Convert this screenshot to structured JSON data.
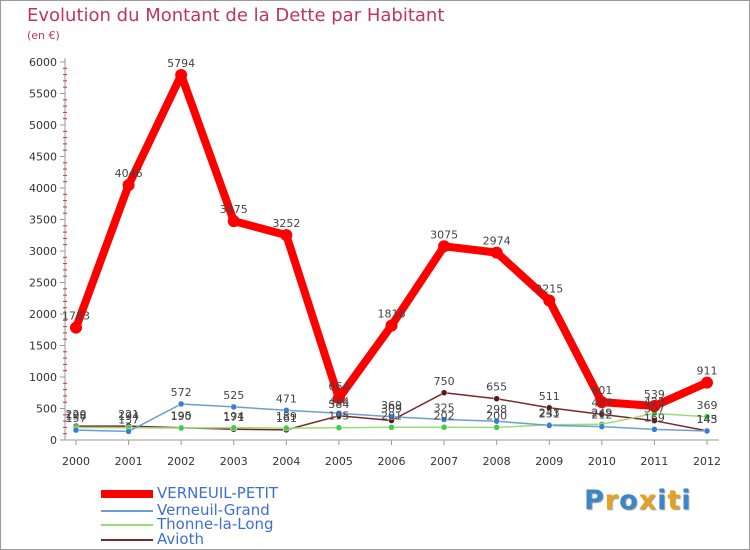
{
  "header": {
    "title": "Evolution du Montant de la Dette par Habitant",
    "subtitle": "(en €)"
  },
  "logo": {
    "text": "Proxiti",
    "letters": [
      "P",
      "r",
      "o",
      "x",
      "i",
      "t",
      "i"
    ],
    "colors": [
      "#3a86c8",
      "#e8a020",
      "#3a86c8",
      "#e8a020",
      "#3a86c8",
      "#e8a020",
      "#3a86c8"
    ]
  },
  "chart_data": {
    "type": "line",
    "title": "Evolution du Montant de la Dette par Habitant",
    "subtitle": "(en €)",
    "xlabel": "",
    "ylabel": "",
    "x": [
      "2000",
      "2001",
      "2002",
      "2003",
      "2004",
      "2005",
      "2006",
      "2007",
      "2008",
      "2009",
      "2010",
      "2011",
      "2012"
    ],
    "ylim": [
      0,
      6000
    ],
    "yticks": [
      0,
      500,
      1000,
      1500,
      2000,
      2500,
      3000,
      3500,
      4000,
      4500,
      5000,
      5500,
      6000
    ],
    "grid": false,
    "legend": "bottom-left",
    "series": [
      {
        "name": "Avioth",
        "color": "#7a2828",
        "marker": "#5a1818",
        "width": 1.5,
        "values": [
          220,
          221,
          195,
          171,
          161,
          384,
          309,
          750,
          655,
          511,
          407,
          307,
          145
        ],
        "labels": [
          "220",
          "221",
          "195",
          "171",
          "161",
          "384",
          "309",
          "750",
          "655",
          "511",
          "407",
          "307",
          "145"
        ]
      },
      {
        "name": "Thonne-la-Long",
        "color": "#99dd77",
        "marker": "#44cc44",
        "width": 1.5,
        "values": [
          198,
          194,
          190,
          194,
          189,
          195,
          201,
          202,
          200,
          243,
          249,
          423,
          369
        ],
        "labels": [
          "198",
          "194",
          "190",
          "194",
          "189",
          "195",
          "201",
          "202",
          "200",
          "243",
          "249",
          "423",
          "369"
        ]
      },
      {
        "name": "Verneuil-Grand",
        "color": "#6c9ed0",
        "marker": "#3a7bd5",
        "width": 1.5,
        "values": [
          157,
          137,
          572,
          525,
          471,
          424,
          369,
          325,
          298,
          231,
          212,
          169,
          143
        ],
        "labels": [
          "157",
          "137",
          "572",
          "525",
          "471",
          "424",
          "369",
          "325",
          "298",
          "231",
          "212",
          "169",
          "143"
        ]
      },
      {
        "name": "VERNEUIL-PETIT",
        "color": "#ff0000",
        "marker": "#ff0000",
        "width": 8,
        "values": [
          1783,
          4046,
          5794,
          3475,
          3252,
          664,
          1816,
          3075,
          2974,
          2215,
          601,
          539,
          911
        ],
        "labels": [
          "1783",
          "4046",
          "5794",
          "3475",
          "3252",
          "664",
          "1816",
          "3075",
          "2974",
          "2215",
          "601",
          "539",
          "911"
        ]
      }
    ]
  },
  "legend_order": [
    "VERNEUIL-PETIT",
    "Verneuil-Grand",
    "Thonne-la-Long",
    "Avioth"
  ]
}
